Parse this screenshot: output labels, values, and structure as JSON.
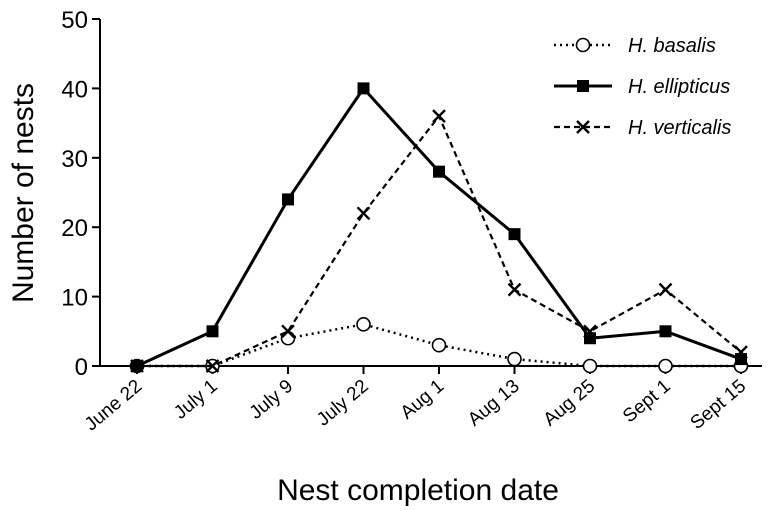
{
  "chart_data": {
    "type": "line",
    "title": "",
    "xlabel": "Nest completion date",
    "ylabel": "Number of nests",
    "categories": [
      "June 22",
      "July 1",
      "July 9",
      "July 22",
      "Aug 1",
      "Aug 13",
      "Aug 25",
      "Sept 1",
      "Sept 15"
    ],
    "ylim": [
      0,
      50
    ],
    "yticks": [
      0,
      10,
      20,
      30,
      40,
      50
    ],
    "grid": false,
    "legend": "top-right",
    "series": [
      {
        "name": "H. basalis",
        "marker": "open-circle",
        "line": "dotted",
        "values": [
          0,
          0,
          4,
          6,
          3,
          1,
          0,
          0,
          0
        ]
      },
      {
        "name": "H. ellipticus",
        "marker": "filled-square",
        "line": "solid",
        "values": [
          0,
          5,
          24,
          40,
          28,
          19,
          4,
          5,
          1
        ]
      },
      {
        "name": "H. verticalis",
        "marker": "x",
        "line": "dashed",
        "values": [
          0,
          0,
          5,
          22,
          36,
          11,
          5,
          11,
          2
        ]
      }
    ]
  }
}
